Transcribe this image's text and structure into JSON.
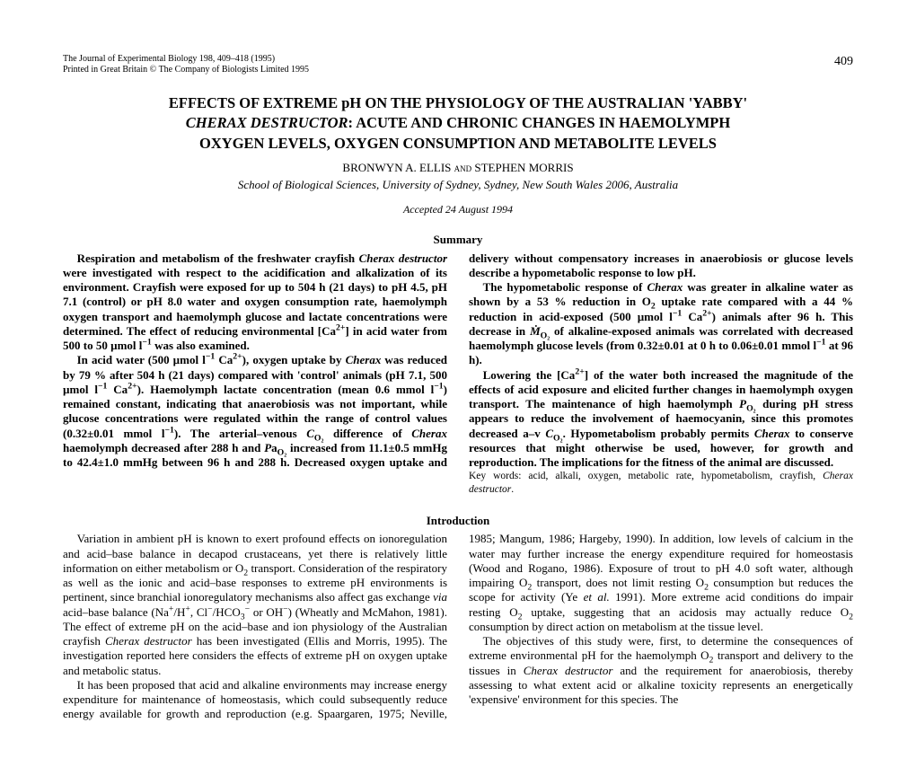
{
  "header": {
    "journal_line": "The Journal of Experimental Biology 198, 409–418 (1995)",
    "print_line": "Printed in Great Britain © The Company of Biologists Limited 1995",
    "page_number": "409"
  },
  "title": {
    "line1": "EFFECTS OF EXTREME pH ON THE PHYSIOLOGY OF THE AUSTRALIAN 'YABBY'",
    "species": "CHERAX DESTRUCTOR",
    "line2_rest": ": ACUTE AND CHRONIC CHANGES IN HAEMOLYMPH",
    "line3": "OXYGEN LEVELS, OXYGEN CONSUMPTION AND METABOLITE LEVELS"
  },
  "authors": "BRONWYN A. ELLIS AND STEPHEN MORRIS",
  "affiliation": "School of Biological Sciences, University of Sydney, Sydney, New South Wales 2006, Australia",
  "accepted": "Accepted 24 August 1994",
  "summary_heading": "Summary",
  "introduction_heading": "Introduction",
  "keywords": "Key words: acid, alkali, oxygen, metabolic rate, hypometabolism, crayfish, Cherax destructor."
}
